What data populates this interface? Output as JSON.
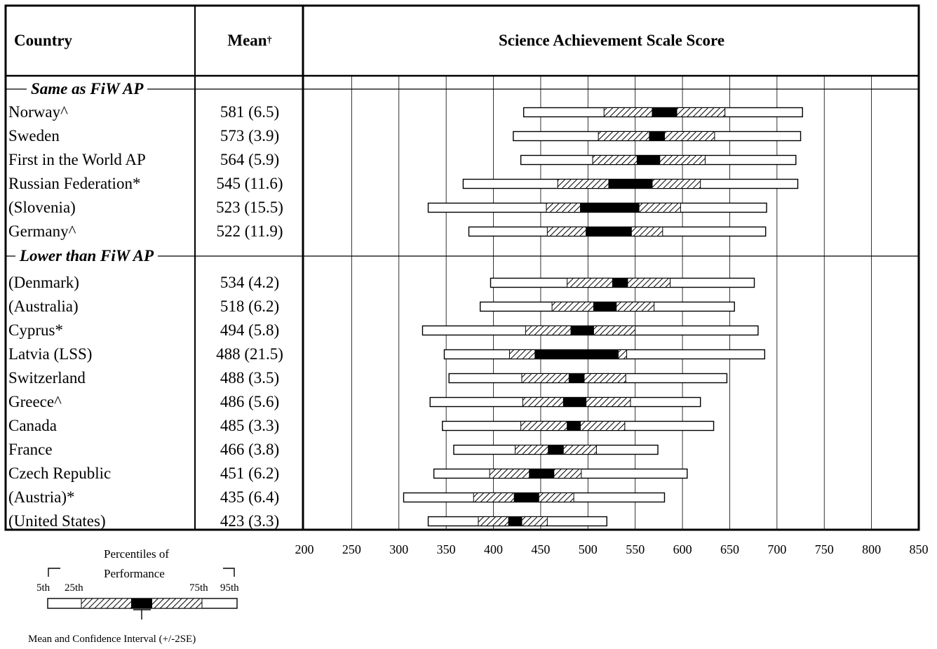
{
  "headers": {
    "country": "Country",
    "mean": "Mean",
    "mean_mark": "†",
    "scale": "Science Achievement Scale Score"
  },
  "groups": {
    "same": "Same as FiW AP",
    "lower": "Lower than FiW AP"
  },
  "legend": {
    "title_line1": "Percentiles of",
    "title_line2": "Performance",
    "p5": "5th",
    "p25": "25th",
    "p75": "75th",
    "p95": "95th",
    "mean_ci": "Mean and Confidence Interval (+/-2SE)"
  },
  "chart_data": {
    "type": "percentile-bar",
    "title": "Science Achievement Scale Score",
    "xlim": [
      200,
      850
    ],
    "xticks": [
      200,
      250,
      300,
      350,
      400,
      450,
      500,
      550,
      600,
      650,
      700,
      750,
      800,
      850
    ],
    "grid": "vertical",
    "rows": [
      {
        "country": "Norway^",
        "mean_label": "581 (6.5)",
        "group": "same",
        "p5": 432,
        "p25": 517,
        "ci_lo": 568,
        "ci_hi": 594,
        "p75": 645,
        "p95": 727
      },
      {
        "country": "Sweden",
        "mean_label": "573 (3.9)",
        "group": "same",
        "p5": 421,
        "p25": 511,
        "ci_lo": 565,
        "ci_hi": 581,
        "p75": 634,
        "p95": 725
      },
      {
        "country": "First in the World AP",
        "mean_label": "564 (5.9)",
        "group": "same",
        "p5": 429,
        "p25": 505,
        "ci_lo": 552,
        "ci_hi": 576,
        "p75": 624,
        "p95": 720
      },
      {
        "country": "Russian Federation*",
        "mean_label": "545 (11.6)",
        "group": "same",
        "p5": 368,
        "p25": 468,
        "ci_lo": 522,
        "ci_hi": 568,
        "p75": 619,
        "p95": 722
      },
      {
        "country": "(Slovenia)",
        "mean_label": "523 (15.5)",
        "group": "same",
        "p5": 331,
        "p25": 456,
        "ci_lo": 492,
        "ci_hi": 554,
        "p75": 598,
        "p95": 689
      },
      {
        "country": "Germany^",
        "mean_label": "522 (11.9)",
        "group": "same",
        "p5": 374,
        "p25": 457,
        "ci_lo": 498,
        "ci_hi": 546,
        "p75": 579,
        "p95": 688
      },
      {
        "country": "(Denmark)",
        "mean_label": "534 (4.2)",
        "group": "lower",
        "p5": 397,
        "p25": 478,
        "ci_lo": 526,
        "ci_hi": 542,
        "p75": 587,
        "p95": 676
      },
      {
        "country": "(Australia)",
        "mean_label": "518 (6.2)",
        "group": "lower",
        "p5": 386,
        "p25": 462,
        "ci_lo": 506,
        "ci_hi": 530,
        "p75": 570,
        "p95": 655
      },
      {
        "country": "Cyprus*",
        "mean_label": "494 (5.8)",
        "group": "lower",
        "p5": 325,
        "p25": 434,
        "ci_lo": 482,
        "ci_hi": 506,
        "p75": 550,
        "p95": 680
      },
      {
        "country": "Latvia (LSS)",
        "mean_label": "488 (21.5)",
        "group": "lower",
        "p5": 348,
        "p25": 417,
        "ci_lo": 444,
        "ci_hi": 532,
        "p75": 541,
        "p95": 687
      },
      {
        "country": "Switzerland",
        "mean_label": "488 (3.5)",
        "group": "lower",
        "p5": 353,
        "p25": 430,
        "ci_lo": 480,
        "ci_hi": 496,
        "p75": 540,
        "p95": 647
      },
      {
        "country": "Greece^",
        "mean_label": "486 (5.6)",
        "group": "lower",
        "p5": 333,
        "p25": 431,
        "ci_lo": 474,
        "ci_hi": 498,
        "p75": 545,
        "p95": 619
      },
      {
        "country": "Canada",
        "mean_label": "485 (3.3)",
        "group": "lower",
        "p5": 346,
        "p25": 429,
        "ci_lo": 478,
        "ci_hi": 492,
        "p75": 539,
        "p95": 633
      },
      {
        "country": "France",
        "mean_label": "466 (3.8)",
        "group": "lower",
        "p5": 358,
        "p25": 423,
        "ci_lo": 458,
        "ci_hi": 474,
        "p75": 509,
        "p95": 574
      },
      {
        "country": "Czech Republic",
        "mean_label": "451 (6.2)",
        "group": "lower",
        "p5": 337,
        "p25": 396,
        "ci_lo": 438,
        "ci_hi": 464,
        "p75": 493,
        "p95": 605
      },
      {
        "country": "(Austria)*",
        "mean_label": "435 (6.4)",
        "group": "lower",
        "p5": 305,
        "p25": 379,
        "ci_lo": 422,
        "ci_hi": 448,
        "p75": 485,
        "p95": 581
      },
      {
        "country": "(United States)",
        "mean_label": "423 (3.3)",
        "group": "lower",
        "p5": 331,
        "p25": 384,
        "ci_lo": 416,
        "ci_hi": 430,
        "p75": 457,
        "p95": 520
      }
    ]
  }
}
